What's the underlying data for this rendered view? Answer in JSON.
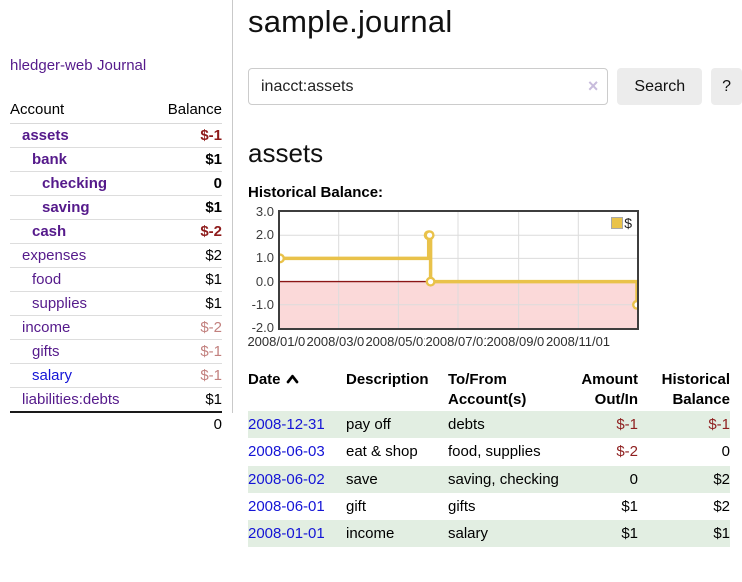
{
  "app": {
    "brand_link": "hledger-web",
    "journal_link": "Journal"
  },
  "sidebar": {
    "account_header": "Account",
    "balance_header": "Balance",
    "accounts": [
      {
        "name": "assets",
        "depth": 1,
        "balance": "$-1",
        "bold": true,
        "neg": "strong",
        "link": "purple"
      },
      {
        "name": "bank",
        "depth": 2,
        "balance": "$1",
        "bold": true,
        "neg": "",
        "link": "purple"
      },
      {
        "name": "checking",
        "depth": 3,
        "balance": "0",
        "bold": true,
        "neg": "",
        "link": "purple"
      },
      {
        "name": "saving",
        "depth": 3,
        "balance": "$1",
        "bold": true,
        "neg": "",
        "link": "purple"
      },
      {
        "name": "cash",
        "depth": 2,
        "balance": "$-2",
        "bold": true,
        "neg": "strong",
        "link": "purple"
      },
      {
        "name": "expenses",
        "depth": 1,
        "balance": "$2",
        "bold": false,
        "neg": "",
        "link": "purple"
      },
      {
        "name": "food",
        "depth": 2,
        "balance": "$1",
        "bold": false,
        "neg": "",
        "link": "purple"
      },
      {
        "name": "supplies",
        "depth": 2,
        "balance": "$1",
        "bold": false,
        "neg": "",
        "link": "purple"
      },
      {
        "name": "income",
        "depth": 1,
        "balance": "$-2",
        "bold": false,
        "neg": "light",
        "link": "purple"
      },
      {
        "name": "gifts",
        "depth": 2,
        "balance": "$-1",
        "bold": false,
        "neg": "light",
        "link": "purple"
      },
      {
        "name": "salary",
        "depth": 2,
        "balance": "$-1",
        "bold": false,
        "neg": "light",
        "link": "blue"
      },
      {
        "name": "liabilities:debts",
        "depth": 1,
        "balance": "$1",
        "bold": false,
        "neg": "",
        "link": "purple"
      }
    ],
    "total": "0"
  },
  "header": {
    "title": "sample.journal"
  },
  "search": {
    "value": "inacct:assets",
    "clear_icon": "×",
    "search_button": "Search",
    "help_button": "?"
  },
  "main": {
    "account_heading": "assets",
    "chart_heading": "Historical Balance:"
  },
  "chart_data": {
    "type": "line",
    "style": "step",
    "series": [
      {
        "name": "$",
        "points": [
          [
            "2008-01-01",
            1
          ],
          [
            "2008-06-01",
            2
          ],
          [
            "2008-06-02",
            2
          ],
          [
            "2008-06-03",
            0
          ],
          [
            "2008-12-31",
            -1
          ]
        ]
      }
    ],
    "xlim": [
      "2008-01-01",
      "2008-12-31"
    ],
    "ylim": [
      -2,
      3
    ],
    "x_ticks": [
      "2008/01/01",
      "2008/03/01",
      "2008/05/01",
      "2008/07/01",
      "2008/09/01",
      "2008/11/01"
    ],
    "y_ticks": [
      3.0,
      2.0,
      1.0,
      0.0,
      -1.0,
      -2.0
    ],
    "legend": {
      "label": "$",
      "position": "top-right"
    },
    "negative_region_shaded": true,
    "colors": {
      "line": "#e9c24a",
      "marker_fill": "#ffffff",
      "negative_fill": "#fbd9d9",
      "zero_line": "#8b1515",
      "grid": "#dcdcdc",
      "legend_swatch": "#e9c34b"
    }
  },
  "register": {
    "headers": {
      "date": "Date",
      "description": "Description",
      "tofrom1": "To/From",
      "tofrom2": "Account(s)",
      "amount1": "Amount",
      "amount2": "Out/In",
      "balance1": "Historical",
      "balance2": "Balance"
    },
    "sort_icon": "chevron-up",
    "rows": [
      {
        "date": "2008-12-31",
        "description": "pay off",
        "tofrom": "debts",
        "amount": "$-1",
        "balance": "$-1",
        "amount_neg": true,
        "balance_neg": true
      },
      {
        "date": "2008-06-03",
        "description": "eat & shop",
        "tofrom": "food, supplies",
        "amount": "$-2",
        "balance": "0",
        "amount_neg": true,
        "balance_neg": false
      },
      {
        "date": "2008-06-02",
        "description": "save",
        "tofrom": "saving, checking",
        "amount": "0",
        "balance": "$2",
        "amount_neg": false,
        "balance_neg": false
      },
      {
        "date": "2008-06-01",
        "description": "gift",
        "tofrom": "gifts",
        "amount": "$1",
        "balance": "$2",
        "amount_neg": false,
        "balance_neg": false
      },
      {
        "date": "2008-01-01",
        "description": "income",
        "tofrom": "salary",
        "amount": "$1",
        "balance": "$1",
        "amount_neg": false,
        "balance_neg": false
      }
    ]
  },
  "colors": {
    "link_purple": "#551a8b",
    "link_blue": "#1414d6",
    "neg_strong": "#8e1b1b",
    "neg_light": "#c2807e",
    "row_green": "#e2eee2"
  }
}
